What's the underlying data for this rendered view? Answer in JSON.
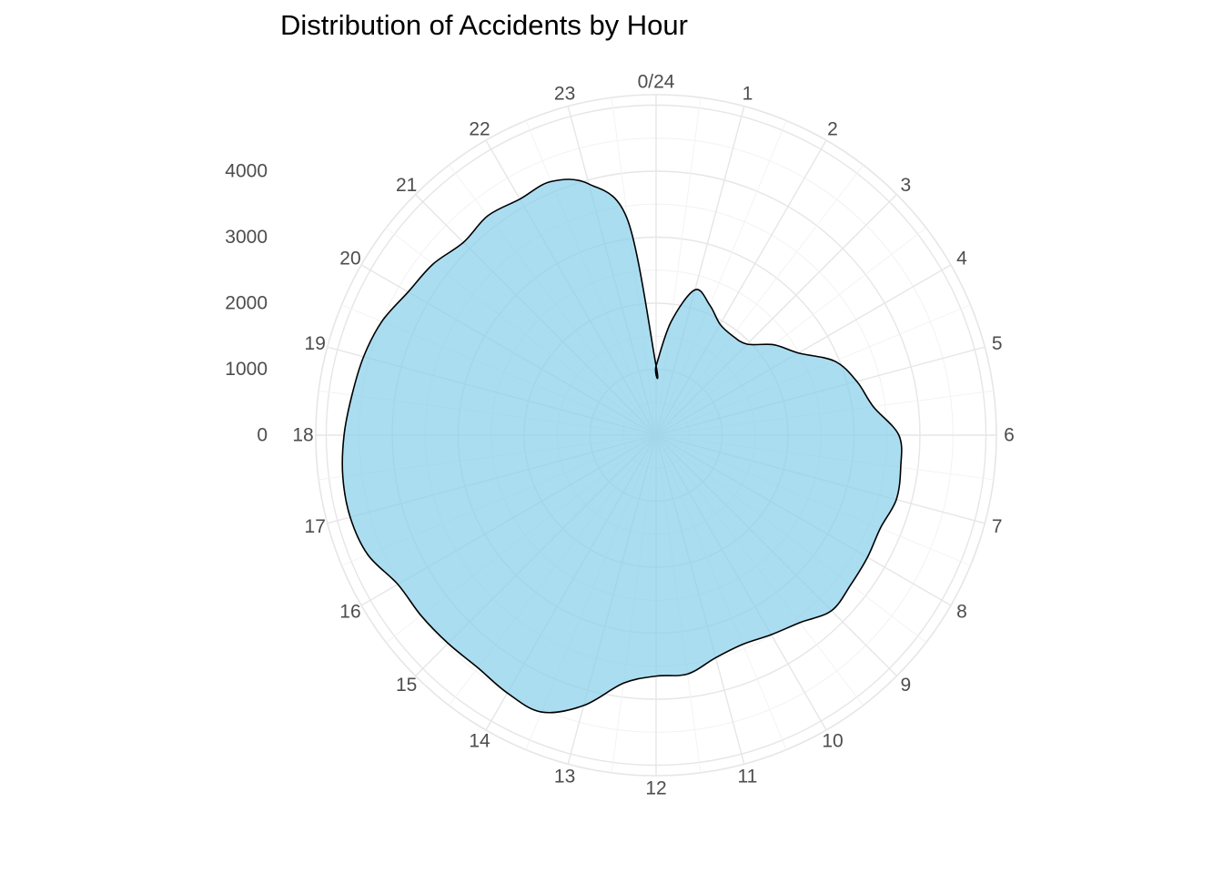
{
  "chart_data": {
    "type": "area",
    "coordinate_system": "polar",
    "title": "Distribution of Accidents by Hour",
    "xlabel": "",
    "ylabel": "",
    "hours": [
      0,
      1,
      2,
      3,
      4,
      5,
      6,
      7,
      8,
      9,
      10,
      11,
      12,
      13,
      14,
      15,
      16,
      17,
      18,
      19,
      20,
      21,
      22,
      23
    ],
    "x": [
      0,
      0.5,
      1,
      1.5,
      2,
      2.5,
      3,
      3.5,
      4,
      4.5,
      5,
      5.5,
      6,
      6.5,
      7,
      7.5,
      8,
      8.5,
      9,
      9.5,
      10,
      10.5,
      11,
      11.5,
      12,
      12.5,
      13,
      13.5,
      14,
      14.5,
      15,
      15.5,
      16,
      16.5,
      17,
      17.5,
      18,
      18.5,
      19,
      19.5,
      20,
      20.5,
      21,
      21.5,
      22,
      22.5,
      23,
      23.5,
      24
    ],
    "values": [
      50,
      730,
      1280,
      1130,
      940,
      900,
      950,
      1250,
      1490,
      1930,
      2150,
      2320,
      2680,
      2740,
      2770,
      2680,
      2700,
      2720,
      2760,
      2580,
      2490,
      2430,
      2490,
      2650,
      2650,
      2790,
      3240,
      3540,
      3510,
      3440,
      3460,
      3490,
      3520,
      3730,
      3800,
      3790,
      3730,
      3650,
      3590,
      3500,
      3340,
      3260,
      3130,
      3190,
      3130,
      3160,
      2940,
      2280,
      50
    ],
    "x_tick_labels": [
      "0/24",
      "1",
      "2",
      "3",
      "4",
      "5",
      "6",
      "7",
      "8",
      "9",
      "10",
      "11",
      "12",
      "13",
      "14",
      "15",
      "16",
      "17",
      "18",
      "19",
      "20",
      "21",
      "22",
      "23"
    ],
    "y_tick_values": [
      0,
      1000,
      2000,
      3000,
      4000
    ],
    "y_tick_labels": [
      "0",
      "1000",
      "2000",
      "3000",
      "4000"
    ],
    "ylim": [
      -1000,
      4900
    ],
    "xlim": [
      0,
      24
    ],
    "grid": true,
    "legend": "none",
    "colors": {
      "fill": "#87ceeb",
      "outline": "#000000",
      "grid_major": "#e6e6e6",
      "grid_minor": "#f2f2f2",
      "tick_text": "#4d4d4d",
      "title_text": "#000000"
    }
  }
}
